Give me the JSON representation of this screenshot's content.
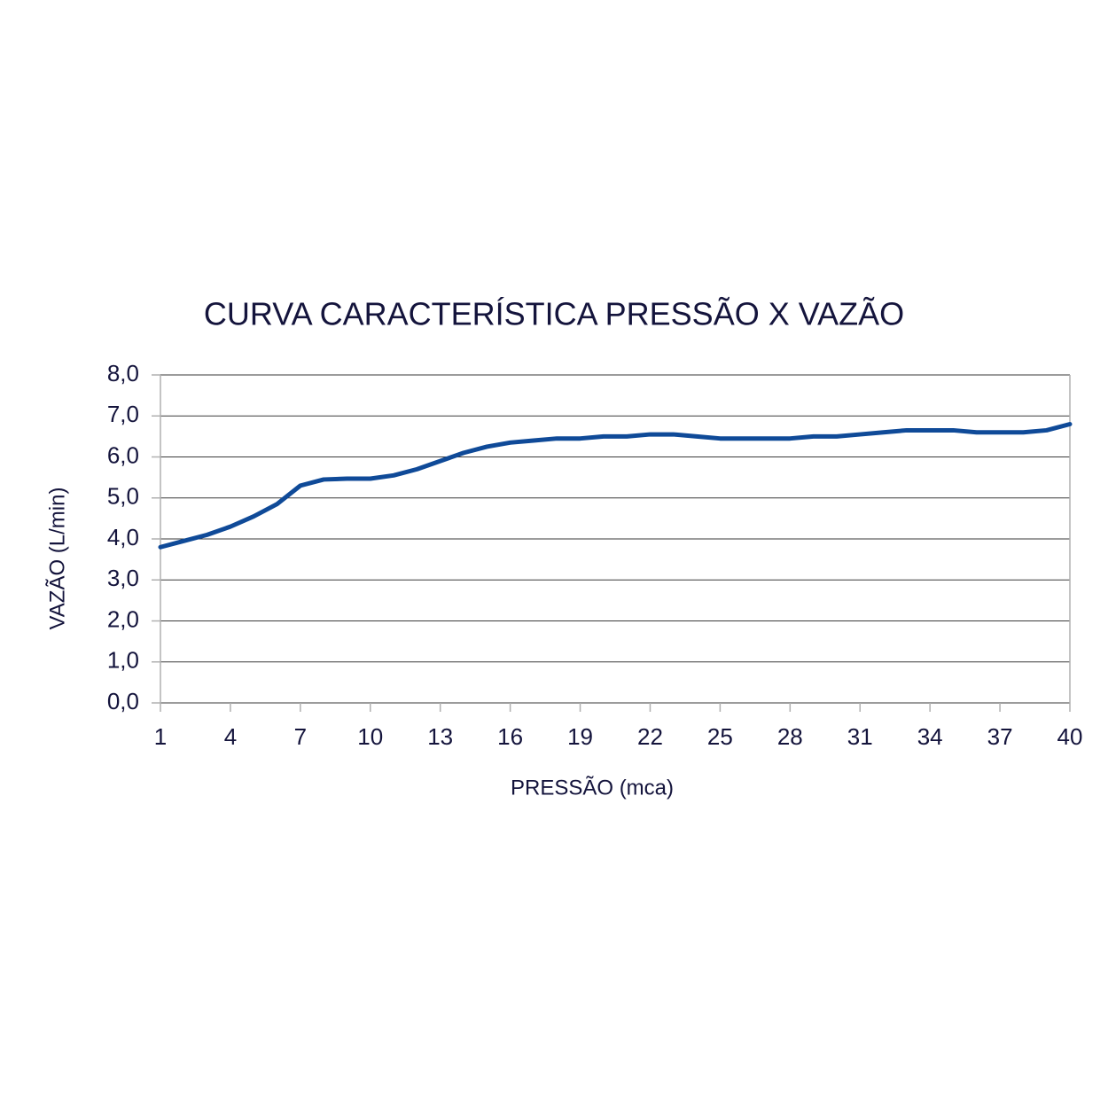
{
  "chart_data": {
    "type": "line",
    "title": "CURVA CARACTERÍSTICA PRESSÃO X VAZÃO",
    "x_label": "PRESSÃO (mca)",
    "y_label": "VAZÃO (L/min)",
    "x": [
      1,
      2,
      3,
      4,
      5,
      6,
      7,
      8,
      9,
      10,
      11,
      12,
      13,
      14,
      15,
      16,
      17,
      18,
      19,
      20,
      21,
      22,
      23,
      24,
      25,
      26,
      27,
      28,
      29,
      30,
      31,
      32,
      33,
      34,
      35,
      36,
      37,
      38,
      39,
      40
    ],
    "series": [
      {
        "name": "VAZÃO (L/min)",
        "color": "#0f4a98",
        "values": [
          3.8,
          3.95,
          4.1,
          4.3,
          4.55,
          4.85,
          5.3,
          5.45,
          5.47,
          5.47,
          5.55,
          5.7,
          5.9,
          6.1,
          6.25,
          6.35,
          6.4,
          6.45,
          6.45,
          6.5,
          6.5,
          6.55,
          6.55,
          6.5,
          6.45,
          6.45,
          6.45,
          6.45,
          6.5,
          6.5,
          6.55,
          6.6,
          6.65,
          6.65,
          6.65,
          6.6,
          6.6,
          6.6,
          6.65,
          6.8
        ]
      }
    ],
    "xlim": [
      1,
      40
    ],
    "xticks": [
      1,
      4,
      7,
      10,
      13,
      16,
      19,
      22,
      25,
      28,
      31,
      34,
      37,
      40
    ],
    "ylim": [
      0,
      8
    ],
    "yticks": [
      {
        "value": 0,
        "label": "0,0"
      },
      {
        "value": 1,
        "label": "1,0"
      },
      {
        "value": 2,
        "label": "2,0"
      },
      {
        "value": 3,
        "label": "3,0"
      },
      {
        "value": 4,
        "label": "4,0"
      },
      {
        "value": 5,
        "label": "5,0"
      },
      {
        "value": 6,
        "label": "6,0"
      },
      {
        "value": 7,
        "label": "7,0"
      },
      {
        "value": 8,
        "label": "8,0"
      }
    ],
    "grid": true
  }
}
